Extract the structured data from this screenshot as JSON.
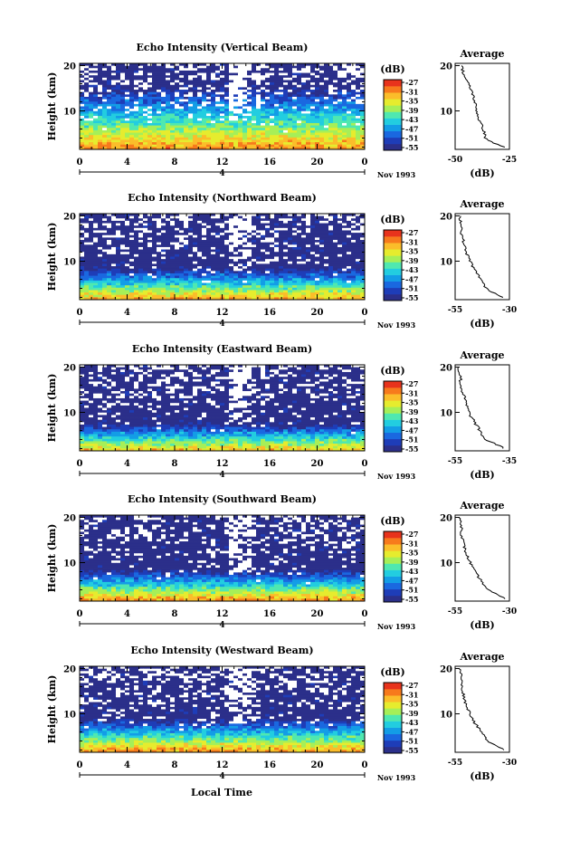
{
  "figure": {
    "xlabel": "Local Time",
    "date_label": "Nov 1993",
    "day_marker": "4"
  },
  "colorbar": {
    "unit_label": "(dB)",
    "ticks": [
      "-27",
      "-31",
      "-35",
      "-39",
      "-43",
      "-47",
      "-51",
      "-55"
    ],
    "range": [
      -57,
      -25
    ],
    "colors": [
      "#2b2f8a",
      "#1e3db8",
      "#1a68e0",
      "#139de6",
      "#22cde0",
      "#4fe8b0",
      "#a6ef58",
      "#e6ec2e",
      "#fbbd2a",
      "#f77a1c",
      "#e8331c"
    ]
  },
  "panels": [
    {
      "title": "Echo Intensity (Vertical Beam)",
      "ylabel": "Height (km)",
      "avg_title": "Average",
      "avg_xlabel": "(dB)",
      "x_ticks": [
        "0",
        "4",
        "8",
        "12",
        "16",
        "20",
        "0"
      ],
      "y_ticks": [
        "20",
        "10"
      ],
      "avg_x_ticks": [
        "-50",
        "-25"
      ],
      "avg_y_ticks": [
        "20",
        "10"
      ]
    },
    {
      "title": "Echo Intensity (Northward Beam)",
      "ylabel": "Height (km)",
      "avg_title": "Average",
      "avg_xlabel": "(dB)",
      "x_ticks": [
        "0",
        "4",
        "8",
        "12",
        "16",
        "20",
        "0"
      ],
      "y_ticks": [
        "20",
        "10"
      ],
      "avg_x_ticks": [
        "-55",
        "-30"
      ],
      "avg_y_ticks": [
        "20",
        "10"
      ]
    },
    {
      "title": "Echo Intensity (Eastward Beam)",
      "ylabel": "Height (km)",
      "avg_title": "Average",
      "avg_xlabel": "(dB)",
      "x_ticks": [
        "0",
        "4",
        "8",
        "12",
        "16",
        "20",
        "0"
      ],
      "y_ticks": [
        "20",
        "10"
      ],
      "avg_x_ticks": [
        "-55",
        "-35"
      ],
      "avg_y_ticks": [
        "20",
        "10"
      ]
    },
    {
      "title": "Echo Intensity (Southward Beam)",
      "ylabel": "Height (km)",
      "avg_title": "Average",
      "avg_xlabel": "(dB)",
      "x_ticks": [
        "0",
        "4",
        "8",
        "12",
        "16",
        "20",
        "0"
      ],
      "y_ticks": [
        "20",
        "10"
      ],
      "avg_x_ticks": [
        "-55",
        "-30"
      ],
      "avg_y_ticks": [
        "20",
        "10"
      ]
    },
    {
      "title": "Echo Intensity (Westward Beam)",
      "ylabel": "Height (km)",
      "avg_title": "Average",
      "avg_xlabel": "(dB)",
      "x_ticks": [
        "0",
        "4",
        "8",
        "12",
        "16",
        "20",
        "0"
      ],
      "y_ticks": [
        "20",
        "10"
      ],
      "avg_x_ticks": [
        "-55",
        "-30"
      ],
      "avg_y_ticks": [
        "20",
        "10"
      ]
    }
  ],
  "chart_data": [
    {
      "type": "heatmap",
      "title": "Echo Intensity (Vertical Beam)",
      "xlabel": "",
      "ylabel": "Height (km)",
      "xlim": [
        0,
        24
      ],
      "ylim": [
        1.5,
        20.5
      ],
      "x_unit": "local time (h)",
      "z_unit": "dB",
      "zlim": [
        -57,
        -25
      ],
      "surface_db": -30,
      "decay_per_km": 1.9,
      "floor_db": -56
    },
    {
      "type": "line",
      "title": "Average",
      "xlabel": "(dB)",
      "ylim": [
        1.5,
        20.5
      ],
      "xlim": [
        -50,
        -25
      ],
      "x": [
        -47,
        -46,
        -44,
        -42,
        -41,
        -40,
        -39,
        -37,
        -36,
        -33,
        -27
      ],
      "y": [
        20,
        18,
        16,
        14,
        12,
        10,
        8,
        6,
        4,
        3,
        2
      ]
    },
    {
      "type": "heatmap",
      "title": "Echo Intensity (Northward Beam)",
      "xlabel": "",
      "ylabel": "Height (km)",
      "xlim": [
        0,
        24
      ],
      "ylim": [
        1.5,
        20.5
      ],
      "x_unit": "local time (h)",
      "z_unit": "dB",
      "zlim": [
        -57,
        -25
      ],
      "surface_db": -31,
      "decay_per_km": 3.6,
      "floor_db": -56
    },
    {
      "type": "line",
      "title": "Average",
      "xlabel": "(dB)",
      "ylim": [
        1.5,
        20.5
      ],
      "xlim": [
        -55,
        -30
      ],
      "x": [
        -53,
        -52,
        -52,
        -51,
        -50,
        -48,
        -46,
        -43,
        -41,
        -37,
        -33
      ],
      "y": [
        20,
        18,
        16,
        14,
        12,
        10,
        8,
        6,
        4,
        3,
        2
      ]
    },
    {
      "type": "heatmap",
      "title": "Echo Intensity (Eastward Beam)",
      "xlabel": "",
      "ylabel": "Height (km)",
      "xlim": [
        0,
        24
      ],
      "ylim": [
        1.5,
        20.5
      ],
      "x_unit": "local time (h)",
      "z_unit": "dB",
      "zlim": [
        -57,
        -25
      ],
      "surface_db": -32,
      "decay_per_km": 4.0,
      "floor_db": -56
    },
    {
      "type": "line",
      "title": "Average",
      "xlabel": "(dB)",
      "ylim": [
        1.5,
        20.5
      ],
      "xlim": [
        -55,
        -35
      ],
      "x": [
        -54,
        -53,
        -53,
        -52,
        -51,
        -50,
        -48,
        -46,
        -44,
        -40,
        -37
      ],
      "y": [
        20,
        18,
        16,
        14,
        12,
        10,
        8,
        6,
        4,
        3,
        2
      ]
    },
    {
      "type": "heatmap",
      "title": "Echo Intensity (Southward Beam)",
      "xlabel": "",
      "ylabel": "Height (km)",
      "xlim": [
        0,
        24
      ],
      "ylim": [
        1.5,
        20.5
      ],
      "x_unit": "local time (h)",
      "z_unit": "dB",
      "zlim": [
        -57,
        -25
      ],
      "surface_db": -30,
      "decay_per_km": 3.8,
      "floor_db": -56
    },
    {
      "type": "line",
      "title": "Average",
      "xlabel": "(dB)",
      "ylim": [
        1.5,
        20.5
      ],
      "xlim": [
        -55,
        -30
      ],
      "x": [
        -53,
        -52,
        -52,
        -51,
        -50,
        -48,
        -46,
        -43,
        -40,
        -36,
        -32
      ],
      "y": [
        20,
        18,
        16,
        14,
        12,
        10,
        8,
        6,
        4,
        3,
        2
      ]
    },
    {
      "type": "heatmap",
      "title": "Echo Intensity (Westward Beam)",
      "xlabel": "Local Time",
      "ylabel": "Height (km)",
      "xlim": [
        0,
        24
      ],
      "ylim": [
        1.5,
        20.5
      ],
      "x_unit": "local time (h)",
      "z_unit": "dB",
      "zlim": [
        -57,
        -25
      ],
      "surface_db": -30,
      "decay_per_km": 3.5,
      "floor_db": -56
    },
    {
      "type": "line",
      "title": "Average",
      "xlabel": "(dB)",
      "ylim": [
        1.5,
        20.5
      ],
      "xlim": [
        -55,
        -30
      ],
      "x": [
        -53,
        -52,
        -52,
        -51,
        -50,
        -48,
        -46,
        -43,
        -40,
        -36,
        -32
      ],
      "y": [
        20,
        18,
        16,
        14,
        12,
        10,
        8,
        6,
        4,
        3,
        2
      ]
    }
  ]
}
